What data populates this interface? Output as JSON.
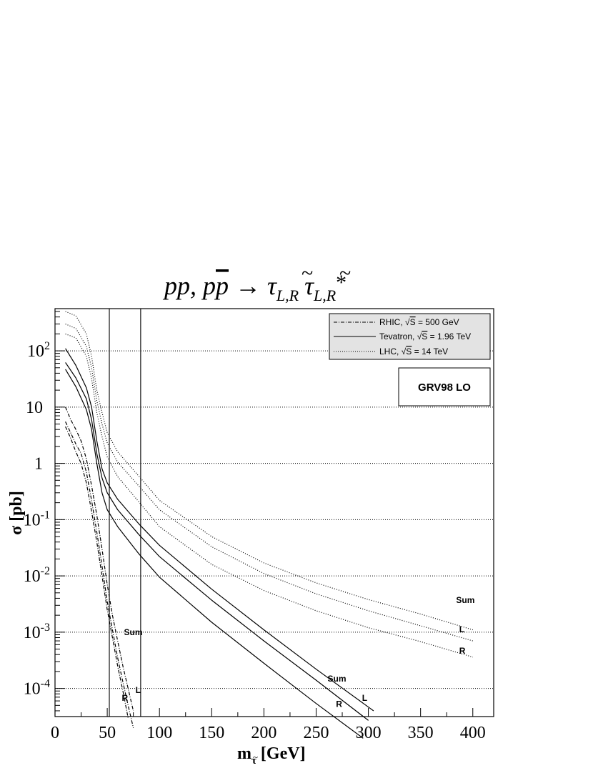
{
  "chart_data": {
    "type": "line",
    "title": {
      "p1": "pp, p",
      "pbar": "p",
      "arrow": " → ",
      "tau": "τ",
      "tilde": "~",
      "sub": "L,R",
      "star": "*"
    },
    "xlabel": {
      "main": "m",
      "sub": "τ",
      "tilde": "~",
      "unit": " [GeV]"
    },
    "ylabel": "σ [pb]",
    "xlim": [
      0,
      420
    ],
    "ylim_log10": [
      -4.5,
      2.75
    ],
    "yscale": "log",
    "x_ticks": [
      "0",
      "50",
      "100",
      "150",
      "200",
      "250",
      "300",
      "350",
      "400"
    ],
    "y_ticks": [
      {
        "value": -4,
        "base": "10",
        "exp": "-4"
      },
      {
        "value": -3,
        "base": "10",
        "exp": "-3"
      },
      {
        "value": -2,
        "base": "10",
        "exp": "-2"
      },
      {
        "value": -1,
        "base": "10",
        "exp": "-1"
      },
      {
        "value": 0,
        "base": "1",
        "exp": ""
      },
      {
        "value": 1,
        "base": "10",
        "exp": ""
      },
      {
        "value": 2,
        "base": "10",
        "exp": "2"
      }
    ],
    "grid": "horizontal dotted at each decade",
    "vertical_lines": [
      52,
      82
    ],
    "legend": {
      "position": "top-right",
      "entries": [
        {
          "pre": "RHIC, ",
          "sqrt": "√",
          "s": "S",
          "post": " = 500 GeV",
          "style": "dashdot"
        },
        {
          "pre": "Tevatron, ",
          "sqrt": "√",
          "s": "S",
          "post": " = 1.96 TeV",
          "style": "solid"
        },
        {
          "pre": "LHC, ",
          "sqrt": "√",
          "s": "S",
          "post": " = 14 TeV",
          "style": "dotted"
        }
      ]
    },
    "annotation_box": "GRV98 LO",
    "series": [
      {
        "group": "LHC",
        "label": "Sum",
        "style": "dotted",
        "x": [
          10,
          20,
          30,
          35,
          40,
          45,
          50,
          60,
          80,
          100,
          150,
          200,
          250,
          300,
          350,
          400
        ],
        "y": [
          500,
          420,
          200,
          80,
          20,
          8,
          3.5,
          1.6,
          0.6,
          0.22,
          0.05,
          0.017,
          0.0075,
          0.0038,
          0.0021,
          0.0011
        ]
      },
      {
        "group": "LHC",
        "label": "L",
        "style": "dotted",
        "x": [
          10,
          20,
          30,
          35,
          40,
          45,
          50,
          60,
          80,
          100,
          150,
          200,
          250,
          300,
          350,
          400
        ],
        "y": [
          300,
          250,
          120,
          50,
          13,
          5,
          2.3,
          1.05,
          0.4,
          0.15,
          0.033,
          0.011,
          0.0048,
          0.0024,
          0.0013,
          0.0007
        ]
      },
      {
        "group": "LHC",
        "label": "R",
        "style": "dotted",
        "x": [
          10,
          20,
          30,
          35,
          40,
          45,
          50,
          60,
          80,
          100,
          150,
          200,
          250,
          300,
          350,
          400
        ],
        "y": [
          200,
          170,
          80,
          32,
          8,
          3,
          1.3,
          0.58,
          0.21,
          0.075,
          0.016,
          0.0055,
          0.0024,
          0.0012,
          0.00068,
          0.00036
        ]
      },
      {
        "group": "Tevatron",
        "label": "Sum",
        "style": "solid",
        "x": [
          10,
          20,
          30,
          35,
          40,
          45,
          50,
          60,
          80,
          100,
          150,
          200,
          250,
          305
        ],
        "y": [
          110,
          55,
          22,
          10,
          2.5,
          0.8,
          0.45,
          0.23,
          0.085,
          0.035,
          0.0058,
          0.0011,
          0.00022,
          4e-05
        ]
      },
      {
        "group": "Tevatron",
        "label": "L",
        "style": "solid",
        "x": [
          10,
          20,
          30,
          35,
          40,
          45,
          50,
          60,
          80,
          100,
          150,
          200,
          250,
          300
        ],
        "y": [
          62,
          33,
          14,
          6,
          1.5,
          0.55,
          0.3,
          0.15,
          0.055,
          0.022,
          0.0037,
          0.0007,
          0.00014,
          2.7e-05
        ]
      },
      {
        "group": "Tevatron",
        "label": "R",
        "style": "solid",
        "x": [
          10,
          20,
          30,
          35,
          40,
          45,
          50,
          60,
          80,
          100,
          150,
          200,
          250,
          295
        ],
        "y": [
          47,
          23,
          9,
          4,
          1.0,
          0.3,
          0.15,
          0.075,
          0.025,
          0.0095,
          0.0015,
          0.00028,
          5.4e-05,
          1.3e-05
        ]
      },
      {
        "group": "RHIC",
        "label": "Sum",
        "style": "dashdot",
        "x": [
          10,
          15,
          20,
          25,
          30,
          35,
          40,
          45,
          50,
          55,
          60,
          65,
          70,
          75
        ],
        "y": [
          10,
          6,
          4,
          2.5,
          1.2,
          0.4,
          0.12,
          0.03,
          0.007,
          0.002,
          0.0007,
          0.00025,
          0.0001,
          4e-05
        ]
      },
      {
        "group": "RHIC",
        "label": "L",
        "style": "dashdot",
        "x": [
          10,
          15,
          20,
          25,
          30,
          35,
          40,
          45,
          50,
          55,
          60,
          65,
          70,
          75
        ],
        "y": [
          5.5,
          3.5,
          2.2,
          1.5,
          0.7,
          0.22,
          0.06,
          0.015,
          0.0035,
          0.0011,
          0.00035,
          0.00013,
          5e-05,
          2e-05
        ]
      },
      {
        "group": "RHIC",
        "label": "R",
        "style": "dashdot",
        "x": [
          10,
          15,
          20,
          25,
          30,
          35,
          40,
          45,
          50,
          55,
          60,
          65,
          70
        ],
        "y": [
          4.5,
          2.8,
          1.6,
          1.0,
          0.45,
          0.14,
          0.04,
          0.01,
          0.0025,
          0.0008,
          0.00025,
          9e-05,
          3e-05
        ]
      }
    ],
    "curve_labels": [
      {
        "text": "Sum",
        "x": 66,
        "logy": -3.05
      },
      {
        "text": "L",
        "x": 77,
        "logy": -4.08
      },
      {
        "text": "R",
        "x": 64,
        "logy": -4.22
      },
      {
        "text": "Sum",
        "x": 261,
        "logy": -3.88
      },
      {
        "text": "L",
        "x": 294,
        "logy": -4.22
      },
      {
        "text": "R",
        "x": 269,
        "logy": -4.33
      },
      {
        "text": "Sum",
        "x": 384,
        "logy": -2.48
      },
      {
        "text": "L",
        "x": 387,
        "logy": -3.0
      },
      {
        "text": "R",
        "x": 387,
        "logy": -3.38
      }
    ]
  }
}
